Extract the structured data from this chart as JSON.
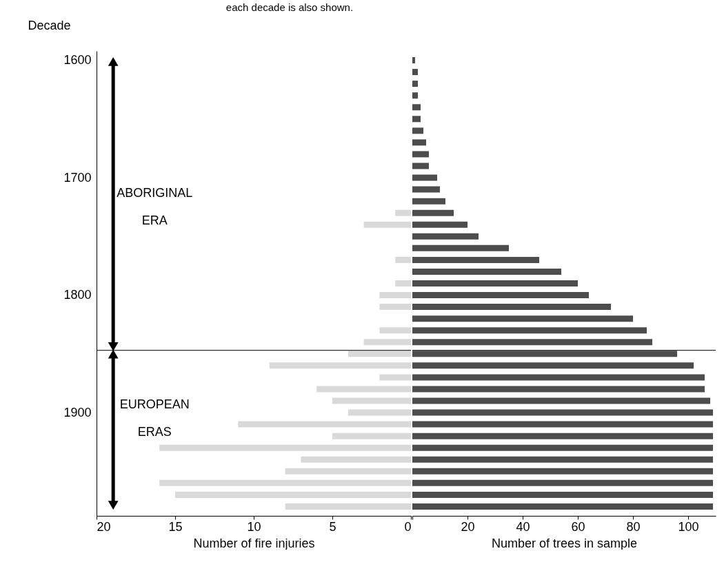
{
  "chart_data": [
    {
      "type": "bar",
      "orientation": "horizontal",
      "xlabel": "Number of fire injuries",
      "ylabel": "Decade",
      "x": [
        1600,
        1610,
        1620,
        1630,
        1640,
        1650,
        1660,
        1670,
        1680,
        1690,
        1700,
        1710,
        1720,
        1730,
        1740,
        1750,
        1760,
        1770,
        1780,
        1790,
        1800,
        1810,
        1820,
        1830,
        1840,
        1850,
        1860,
        1870,
        1880,
        1890,
        1900,
        1910,
        1920,
        1930,
        1940,
        1950,
        1960,
        1970,
        1980
      ],
      "series": [
        {
          "color": "#d9d9d9",
          "values": [
            0,
            0,
            0,
            0,
            0,
            0,
            0,
            0,
            0,
            0,
            0,
            0,
            0,
            1,
            3,
            0,
            0,
            1,
            0,
            1,
            2,
            2,
            0,
            2,
            3,
            4,
            9,
            2,
            6,
            5,
            4,
            11,
            5,
            16,
            7,
            8,
            16,
            15,
            8
          ]
        }
      ],
      "xlim": [
        20,
        0
      ],
      "xticks": [
        20,
        15,
        10,
        5,
        0
      ],
      "ylim": [
        1985,
        1595
      ],
      "yticks": [
        1600,
        1700,
        1800,
        1900
      ],
      "ref_lines": [
        {
          "axis": "y",
          "value": 1847
        }
      ],
      "annotations": [
        "each decade is also shown.",
        "ABORIGINAL ERA",
        "EUROPEAN ERAS"
      ]
    },
    {
      "type": "bar",
      "orientation": "horizontal",
      "xlabel": "Number of trees in sample",
      "x": [
        1600,
        1610,
        1620,
        1630,
        1640,
        1650,
        1660,
        1670,
        1680,
        1690,
        1700,
        1710,
        1720,
        1730,
        1740,
        1750,
        1760,
        1770,
        1780,
        1790,
        1800,
        1810,
        1820,
        1830,
        1840,
        1850,
        1860,
        1870,
        1880,
        1890,
        1900,
        1910,
        1920,
        1930,
        1940,
        1950,
        1960,
        1970,
        1980
      ],
      "series": [
        {
          "color": "#4d4d4d",
          "values": [
            1,
            2,
            2,
            2,
            3,
            3,
            4,
            5,
            6,
            6,
            9,
            10,
            12,
            15,
            20,
            24,
            35,
            46,
            54,
            60,
            64,
            72,
            80,
            85,
            87,
            96,
            102,
            106,
            106,
            108,
            109,
            109,
            109,
            109,
            109,
            109,
            109,
            109,
            109
          ]
        }
      ],
      "xlim": [
        0,
        110
      ],
      "xticks": [
        {
          "value": 0,
          "label": null
        },
        20,
        40,
        60,
        80,
        100
      ],
      "ylim": [
        1985,
        1595
      ],
      "tick_labels": "x",
      "ref_lines": [
        {
          "axis": "y",
          "value": 1847
        }
      ]
    }
  ]
}
